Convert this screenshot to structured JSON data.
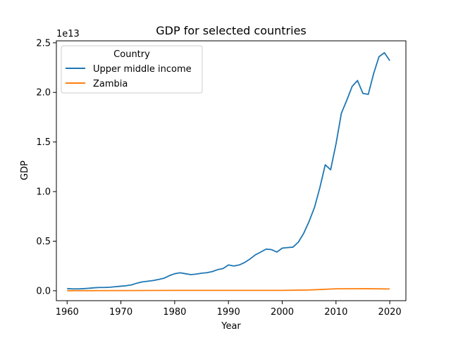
{
  "chart_data": {
    "type": "line",
    "title": "GDP for selected countries",
    "xlabel": "Year",
    "ylabel": "GDP",
    "y_offset_label": "1e13",
    "xlim": [
      1958,
      2023
    ],
    "ylim": [
      -0.1,
      2.52
    ],
    "y_unit_multiplier": "1e13",
    "x_ticks": [
      1960,
      1970,
      1980,
      1990,
      2000,
      2010,
      2020
    ],
    "y_ticks": [
      0.0,
      0.5,
      1.0,
      1.5,
      2.0,
      2.5
    ],
    "y_tick_labels": [
      "0.0",
      "0.5",
      "1.0",
      "1.5",
      "2.0",
      "2.5"
    ],
    "grid": false,
    "legend": {
      "title": "Country",
      "placement": "upper-left"
    },
    "series": [
      {
        "name": "Upper middle income",
        "color": "#1f77b4",
        "x": [
          1960,
          1961,
          1962,
          1963,
          1964,
          1965,
          1966,
          1967,
          1968,
          1969,
          1970,
          1971,
          1972,
          1973,
          1974,
          1975,
          1976,
          1977,
          1978,
          1979,
          1980,
          1981,
          1982,
          1983,
          1984,
          1985,
          1986,
          1987,
          1988,
          1989,
          1990,
          1991,
          1992,
          1993,
          1994,
          1995,
          1996,
          1997,
          1998,
          1999,
          2000,
          2001,
          2002,
          2003,
          2004,
          2005,
          2006,
          2007,
          2008,
          2009,
          2010,
          2011,
          2012,
          2013,
          2014,
          2015,
          2016,
          2017,
          2018,
          2019,
          2020
        ],
        "y": [
          0.022,
          0.019,
          0.019,
          0.021,
          0.025,
          0.03,
          0.033,
          0.033,
          0.036,
          0.041,
          0.046,
          0.051,
          0.06,
          0.077,
          0.09,
          0.096,
          0.103,
          0.114,
          0.126,
          0.152,
          0.172,
          0.181,
          0.172,
          0.163,
          0.168,
          0.177,
          0.182,
          0.194,
          0.213,
          0.224,
          0.26,
          0.25,
          0.26,
          0.285,
          0.32,
          0.362,
          0.39,
          0.42,
          0.415,
          0.39,
          0.43,
          0.435,
          0.44,
          0.49,
          0.58,
          0.7,
          0.84,
          1.04,
          1.27,
          1.22,
          1.48,
          1.79,
          1.92,
          2.06,
          2.12,
          1.99,
          1.98,
          2.19,
          2.36,
          2.4,
          2.32
        ]
      },
      {
        "name": "Zambia",
        "color": "#ff7f0e",
        "x": [
          1960,
          1970,
          1980,
          1990,
          2000,
          2005,
          2010,
          2015,
          2020
        ],
        "y": [
          0.0007,
          0.0019,
          0.004,
          0.0039,
          0.0036,
          0.008,
          0.02,
          0.021,
          0.018
        ]
      }
    ]
  }
}
